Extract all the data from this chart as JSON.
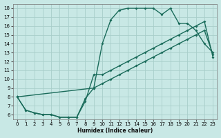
{
  "bg_color": "#c8e8e5",
  "grid_color": "#a8ceca",
  "line_color": "#1a6b5a",
  "xlabel": "Humidex (Indice chaleur)",
  "xlim": [
    -0.5,
    23.5
  ],
  "ylim": [
    5.5,
    18.5
  ],
  "xticks": [
    0,
    1,
    2,
    3,
    4,
    5,
    6,
    7,
    8,
    9,
    10,
    11,
    12,
    13,
    14,
    15,
    16,
    17,
    18,
    19,
    20,
    21,
    22,
    23
  ],
  "yticks": [
    6,
    7,
    8,
    9,
    10,
    11,
    12,
    13,
    14,
    15,
    16,
    17,
    18
  ],
  "curve1_x": [
    0,
    1,
    2,
    3,
    4,
    5,
    6,
    7,
    8,
    9,
    10,
    11,
    12,
    13,
    14,
    15,
    16,
    17,
    18,
    19,
    20,
    21,
    22,
    23
  ],
  "curve1_y": [
    8,
    6.5,
    6.2,
    6.0,
    6.0,
    5.7,
    5.7,
    5.7,
    7.8,
    9.0,
    14.0,
    16.7,
    17.8,
    18.0,
    18.0,
    18.0,
    18.0,
    17.3,
    18.0,
    16.3,
    16.3,
    15.5,
    14.0,
    13.0
  ],
  "curve2_x": [
    0,
    1,
    2,
    3,
    4,
    5,
    6,
    7,
    8,
    9,
    10,
    11,
    12,
    13,
    14,
    15,
    16,
    17,
    18,
    19,
    20,
    21,
    22,
    23
  ],
  "curve2_y": [
    8,
    6.5,
    6.2,
    6.0,
    6.0,
    5.7,
    5.7,
    5.7,
    7.5,
    10.5,
    10.5,
    11.0,
    11.5,
    12.0,
    12.5,
    13.0,
    13.5,
    14.0,
    14.5,
    15.0,
    15.5,
    16.0,
    16.5,
    12.5
  ],
  "curve3_x": [
    0,
    9,
    10,
    11,
    12,
    13,
    14,
    15,
    16,
    17,
    18,
    19,
    20,
    21,
    22,
    23
  ],
  "curve3_y": [
    8,
    9.0,
    9.5,
    10.0,
    10.5,
    11.0,
    11.5,
    12.0,
    12.5,
    13.0,
    13.5,
    14.0,
    14.5,
    15.0,
    15.5,
    12.8
  ],
  "lw": 1.0,
  "ms": 2.0
}
